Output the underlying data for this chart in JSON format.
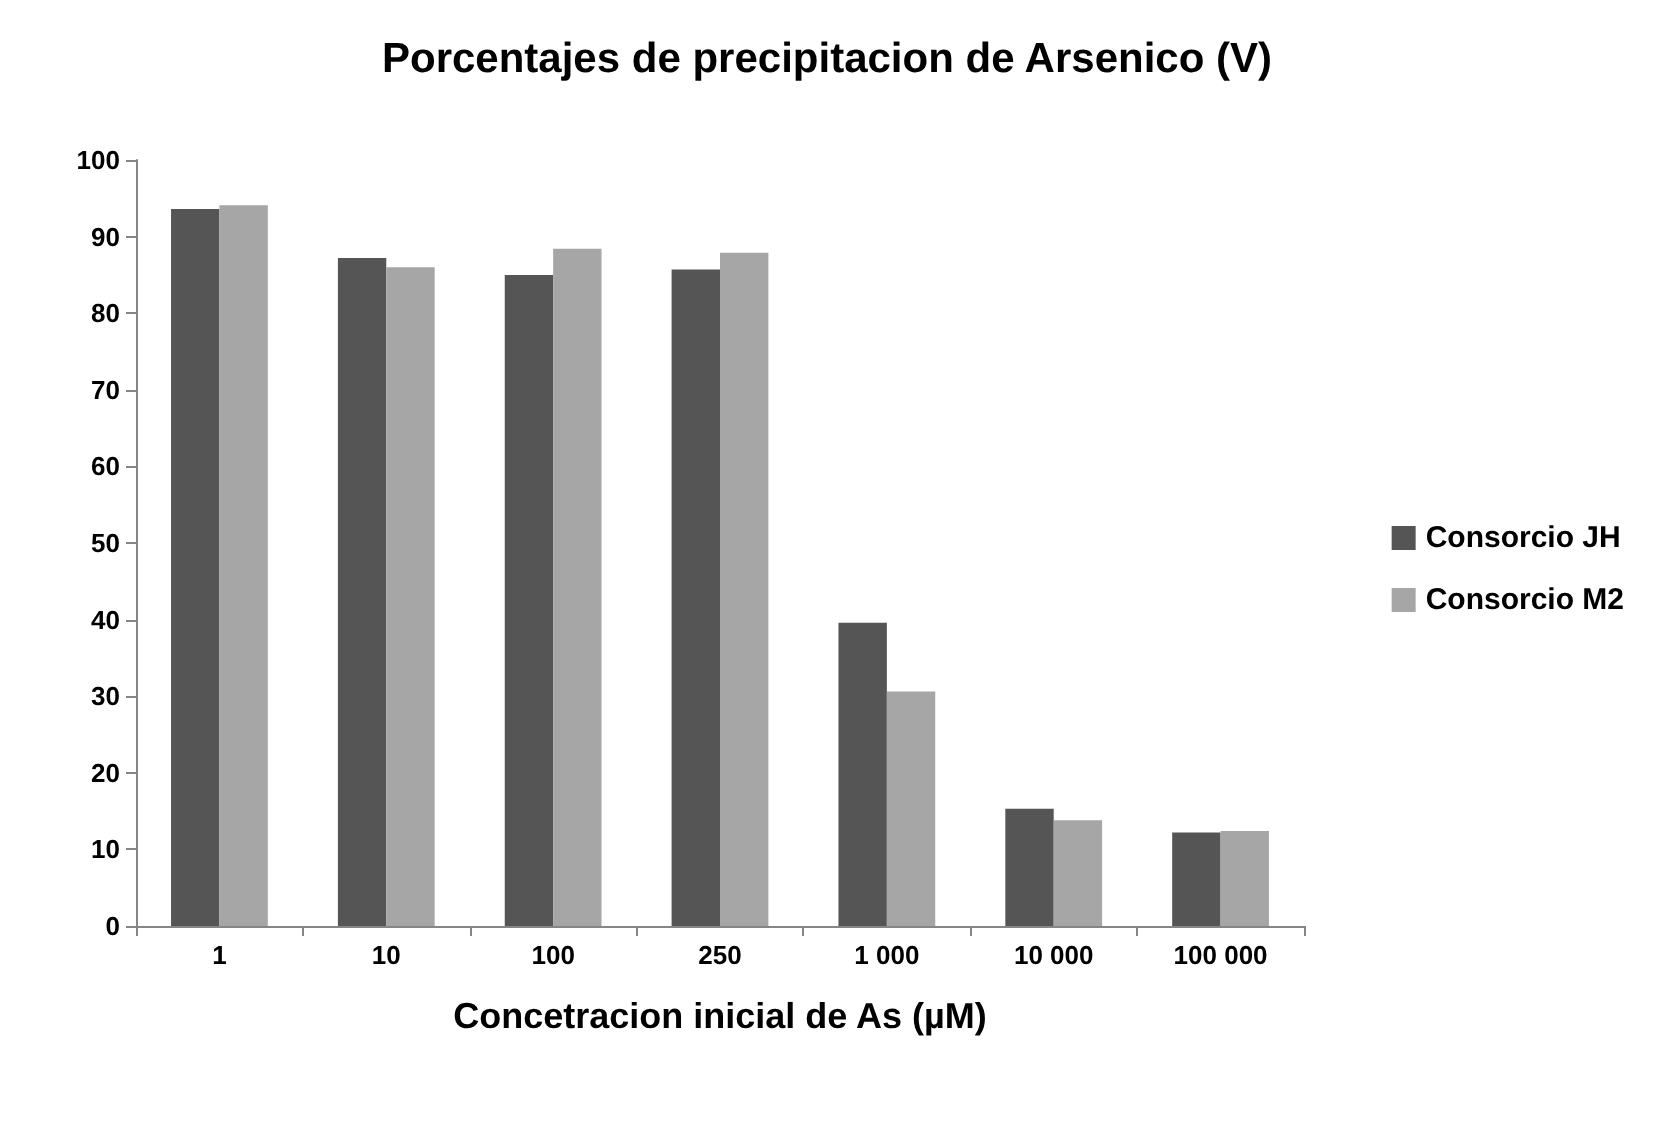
{
  "chart_data": {
    "type": "bar",
    "title": "Porcentajes de precipitacion de Arsenico (V)",
    "xlabel": "Concetracion inicial de As (µM)",
    "categories": [
      "1",
      "10",
      "100",
      "250",
      "1 000",
      "10 000",
      "100 000"
    ],
    "series": [
      {
        "name": "Consorcio JH",
        "color": "#555555",
        "values": [
          93.6,
          87.2,
          85.0,
          85.7,
          39.6,
          15.3,
          12.2
        ]
      },
      {
        "name": "Consorcio M2",
        "color": "#a6a6a6",
        "values": [
          94.1,
          86.0,
          88.4,
          87.9,
          30.6,
          13.8,
          12.4
        ]
      }
    ],
    "ylim": [
      0,
      100
    ],
    "yticks": [
      0,
      10,
      20,
      30,
      40,
      50,
      60,
      70,
      80,
      90,
      100
    ],
    "grid": false,
    "legend": "right"
  }
}
